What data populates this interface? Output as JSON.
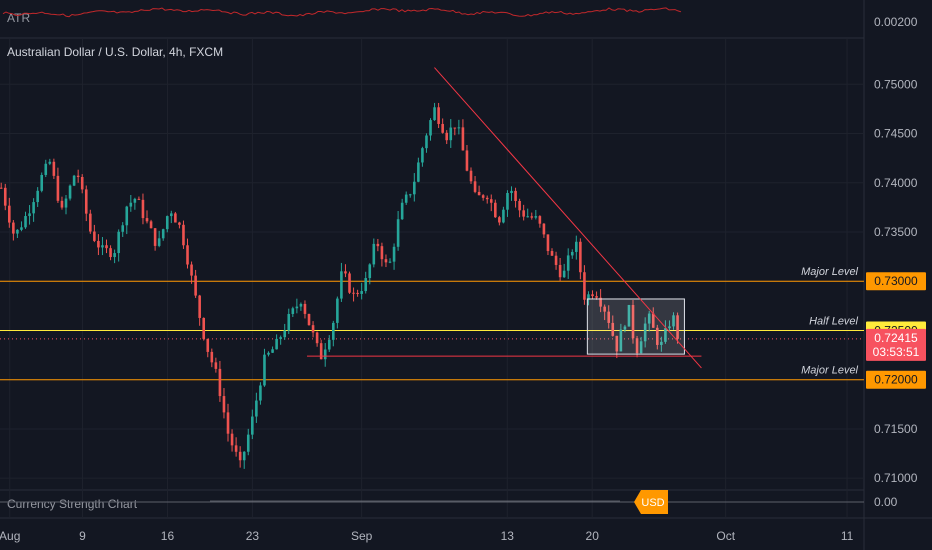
{
  "panes": {
    "atr": {
      "label": "ATR",
      "value_label": "0.00200"
    },
    "main": {
      "title": "Australian Dollar / U.S. Dollar, 4h, FXCM"
    },
    "strength": {
      "label": "Currency Strength Chart",
      "value_label": "0.00",
      "badge": "USD"
    }
  },
  "levels": [
    {
      "name": "major-level-upper",
      "label": "Major Level",
      "price": 0.73,
      "price_label": "0.73000",
      "color": "#ff9800",
      "badge_text": "#131722"
    },
    {
      "name": "half-level",
      "label": "Half Level",
      "price": 0.725,
      "price_label": "0.72500",
      "color": "#ffeb3b",
      "badge_text": "#131722"
    },
    {
      "name": "major-level-lower",
      "label": "Major Level",
      "price": 0.72,
      "price_label": "0.72000",
      "color": "#ff9800",
      "badge_text": "#131722"
    }
  ],
  "current_price": {
    "price": 0.72415,
    "label": "0.72415",
    "countdown": "03:53:51",
    "color": "#f7525f"
  },
  "colors": {
    "up": "#26a69a",
    "down": "#ef5350",
    "trendline": "#f23645",
    "atr": "#c2282b",
    "grid": "#1e222d"
  },
  "chart_data": [
    {
      "type": "line",
      "title": "ATR",
      "y_ticks": [
        0.002
      ],
      "y_tick_labels": [
        "0.00200"
      ]
    },
    {
      "type": "candlestick",
      "title": "Australian Dollar / U.S. Dollar, 4h, FXCM",
      "x_ticks": [
        {
          "label": "Aug",
          "day": 3
        },
        {
          "label": "9",
          "day": 9
        },
        {
          "label": "16",
          "day": 16
        },
        {
          "label": "23",
          "day": 23
        },
        {
          "label": "Sep",
          "day": 32
        },
        {
          "label": "13",
          "day": 44
        },
        {
          "label": "20",
          "day": 51
        },
        {
          "label": "Oct",
          "day": 62
        },
        {
          "label": "11",
          "day": 72
        }
      ],
      "y_ticks": [
        0.71,
        0.715,
        0.72,
        0.725,
        0.73,
        0.735,
        0.74,
        0.745,
        0.75
      ],
      "y_tick_labels": [
        "0.71000",
        "0.71500",
        "0.72000",
        "0.72500",
        "0.73000",
        "0.73500",
        "0.74000",
        "0.74500",
        "0.75000"
      ],
      "ylim": [
        0.7088,
        0.7545
      ],
      "xlim": [
        2.2,
        79.0
      ],
      "path": [
        [
          2.3,
          0.7395
        ],
        [
          3.4,
          0.7345
        ],
        [
          4.5,
          0.737
        ],
        [
          5.6,
          0.7405
        ],
        [
          6.3,
          0.7421
        ],
        [
          7.3,
          0.737
        ],
        [
          8.5,
          0.7415
        ],
        [
          9.6,
          0.7352
        ],
        [
          10.6,
          0.7331
        ],
        [
          11.6,
          0.733
        ],
        [
          12.6,
          0.7376
        ],
        [
          13.4,
          0.7385
        ],
        [
          14.2,
          0.7362
        ],
        [
          15.2,
          0.7335
        ],
        [
          16.2,
          0.7375
        ],
        [
          17.1,
          0.7353
        ],
        [
          17.6,
          0.7326
        ],
        [
          18.4,
          0.7278
        ],
        [
          19.2,
          0.7235
        ],
        [
          20.1,
          0.7202
        ],
        [
          21.0,
          0.7145
        ],
        [
          22.0,
          0.7112
        ],
        [
          23.0,
          0.716
        ],
        [
          24.0,
          0.722
        ],
        [
          25.0,
          0.7236
        ],
        [
          26.0,
          0.7262
        ],
        [
          27.0,
          0.7282
        ],
        [
          28.0,
          0.7245
        ],
        [
          28.6,
          0.7222
        ],
        [
          29.6,
          0.7255
        ],
        [
          30.4,
          0.731
        ],
        [
          31.3,
          0.7285
        ],
        [
          32.3,
          0.7298
        ],
        [
          33.2,
          0.7342
        ],
        [
          34.2,
          0.731
        ],
        [
          35.2,
          0.7372
        ],
        [
          36.2,
          0.7396
        ],
        [
          37.2,
          0.7445
        ],
        [
          38.0,
          0.7475
        ],
        [
          39.0,
          0.7448
        ],
        [
          39.8,
          0.7462
        ],
        [
          40.6,
          0.7418
        ],
        [
          41.4,
          0.7383
        ],
        [
          42.3,
          0.739
        ],
        [
          43.3,
          0.7362
        ],
        [
          44.2,
          0.7398
        ],
        [
          44.8,
          0.7375
        ],
        [
          45.4,
          0.7368
        ],
        [
          46.5,
          0.7362
        ],
        [
          47.6,
          0.7325
        ],
        [
          48.6,
          0.7305
        ],
        [
          49.6,
          0.7342
        ],
        [
          50.4,
          0.7282
        ],
        [
          51.2,
          0.7292
        ],
        [
          52.2,
          0.7268
        ],
        [
          53.0,
          0.7232
        ],
        [
          54.0,
          0.7272
        ],
        [
          54.6,
          0.7228
        ],
        [
          55.6,
          0.7265
        ],
        [
          56.6,
          0.7232
        ],
        [
          57.6,
          0.7266
        ],
        [
          58.2,
          0.7241
        ]
      ],
      "red_box": {
        "x": [
          50.6,
          58.6
        ],
        "y": [
          0.7226,
          0.7282
        ]
      },
      "trendline": {
        "x": [
          38.0,
          60.0
        ],
        "y": [
          0.7517,
          0.7212
        ]
      },
      "support_line": {
        "x": [
          27.5,
          60.0
        ],
        "y": [
          0.7224,
          0.7224
        ]
      }
    },
    {
      "type": "line",
      "title": "Currency Strength Chart",
      "series": [
        {
          "name": "USD"
        }
      ],
      "y_ticks": [
        0.0
      ],
      "y_tick_labels": [
        "0.00"
      ]
    }
  ]
}
